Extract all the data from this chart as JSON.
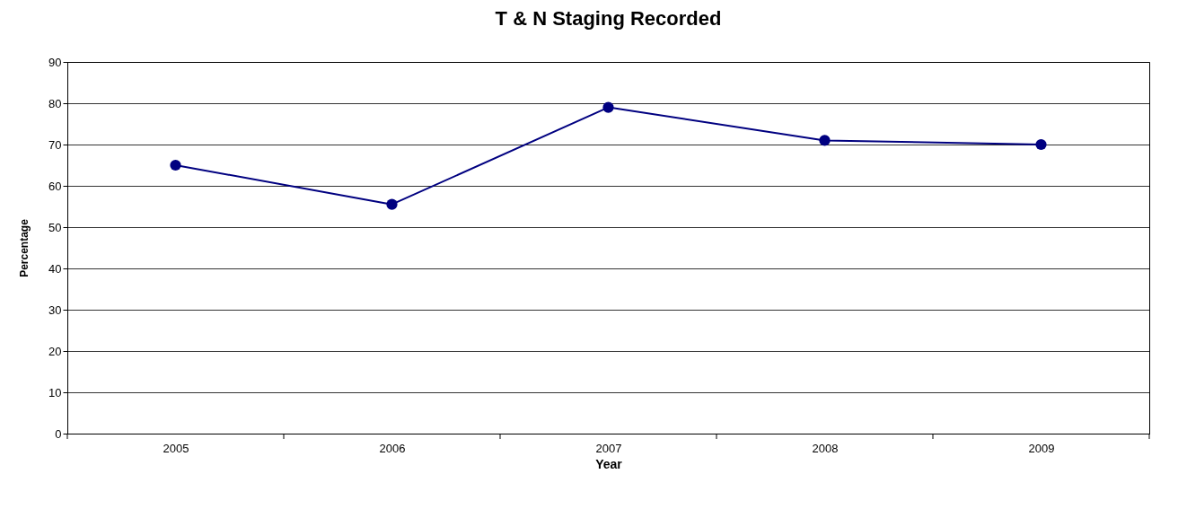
{
  "chart_data": {
    "type": "line",
    "title": "T & N Staging Recorded",
    "xlabel": "Year",
    "ylabel": "Percentage",
    "categories": [
      "2005",
      "2006",
      "2007",
      "2008",
      "2009"
    ],
    "series": [
      {
        "color": "#000080",
        "values": [
          65,
          55.5,
          79,
          71,
          70
        ]
      }
    ],
    "ylim": [
      0,
      90
    ],
    "yticks": [
      0,
      10,
      20,
      30,
      40,
      50,
      60,
      70,
      80,
      90
    ],
    "grid": "y",
    "marker": "circle"
  }
}
